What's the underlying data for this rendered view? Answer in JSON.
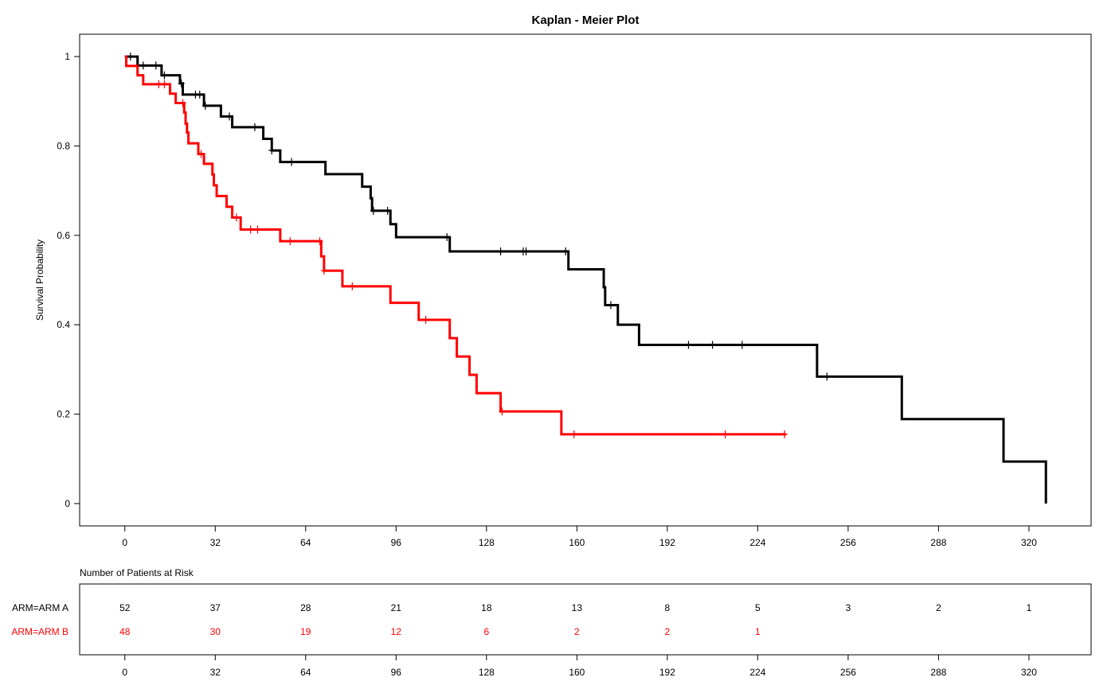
{
  "chart_data": {
    "type": "line",
    "title": "Kaplan - Meier Plot",
    "xlabel": "",
    "ylabel": "Survival Probability",
    "xlim": [
      -16,
      342
    ],
    "ylim": [
      -0.05,
      1.05
    ],
    "x_ticks": [
      "0",
      "32",
      "64",
      "96",
      "128",
      "160",
      "192",
      "224",
      "256",
      "288",
      "320"
    ],
    "y_ticks": [
      "0",
      "0.2",
      "0.4",
      "0.6",
      "0.8",
      "1"
    ],
    "colors": {
      "ARM A": "#000000",
      "ARM B": "#ff0000"
    },
    "series": [
      {
        "name": "ARM=ARM A",
        "color": "#000000",
        "steps": [
          [
            0,
            1.0
          ],
          [
            4.5,
            0.98
          ],
          [
            13,
            0.958
          ],
          [
            19.5,
            0.94
          ],
          [
            20.5,
            0.915
          ],
          [
            28,
            0.89
          ],
          [
            34,
            0.866
          ],
          [
            38,
            0.842
          ],
          [
            49,
            0.816
          ],
          [
            52,
            0.79
          ],
          [
            55,
            0.764
          ],
          [
            71,
            0.737
          ],
          [
            84,
            0.709
          ],
          [
            87,
            0.683
          ],
          [
            87.5,
            0.655
          ],
          [
            94,
            0.625
          ],
          [
            96,
            0.596
          ],
          [
            115,
            0.564
          ],
          [
            157,
            0.524
          ],
          [
            169.5,
            0.484
          ],
          [
            170,
            0.444
          ],
          [
            174.5,
            0.4
          ],
          [
            182,
            0.355
          ],
          [
            245,
            0.284
          ],
          [
            275,
            0.189
          ],
          [
            311,
            0.094
          ],
          [
            326,
            0.0
          ]
        ],
        "censor_x": [
          2,
          6.5,
          11,
          14,
          20,
          25,
          26.5,
          28.5,
          37,
          46,
          52,
          59,
          88,
          93,
          114,
          133,
          141,
          142,
          156,
          172,
          199.5,
          208,
          218.5,
          248.5
        ]
      },
      {
        "name": "ARM=ARM B",
        "color": "#ff0000",
        "steps": [
          [
            0,
            1.0
          ],
          [
            0.5,
            0.979
          ],
          [
            4.5,
            0.958
          ],
          [
            6.5,
            0.938
          ],
          [
            16,
            0.917
          ],
          [
            18,
            0.896
          ],
          [
            21,
            0.875
          ],
          [
            21.5,
            0.85
          ],
          [
            22,
            0.83
          ],
          [
            22.5,
            0.806
          ],
          [
            26,
            0.782
          ],
          [
            28,
            0.76
          ],
          [
            31,
            0.736
          ],
          [
            31.5,
            0.712
          ],
          [
            32.5,
            0.688
          ],
          [
            36,
            0.664
          ],
          [
            38,
            0.64
          ],
          [
            41,
            0.613
          ],
          [
            55,
            0.587
          ],
          [
            69.5,
            0.553
          ],
          [
            70.5,
            0.521
          ],
          [
            77,
            0.486
          ],
          [
            94,
            0.449
          ],
          [
            104,
            0.411
          ],
          [
            115,
            0.37
          ],
          [
            117.5,
            0.329
          ],
          [
            122,
            0.288
          ],
          [
            124.5,
            0.247
          ],
          [
            133,
            0.206
          ],
          [
            154.5,
            0.155
          ],
          [
            234,
            0.155
          ]
        ],
        "censor_x": [
          12,
          14,
          20.5,
          27,
          39.5,
          44.5,
          47,
          58.5,
          69,
          70.5,
          80.5,
          106.5,
          133.5,
          159,
          212.5,
          233.5
        ]
      }
    ]
  },
  "risk_table": {
    "title": "Number of Patients at Risk",
    "time_points": [
      0,
      32,
      64,
      96,
      128,
      160,
      192,
      224,
      256,
      288,
      320
    ],
    "x_ticks": [
      "0",
      "32",
      "64",
      "96",
      "128",
      "160",
      "192",
      "224",
      "256",
      "288",
      "320"
    ],
    "rows": [
      {
        "label": "ARM=ARM A",
        "color": "#000000",
        "counts": [
          "52",
          "37",
          "28",
          "21",
          "18",
          "13",
          "8",
          "5",
          "3",
          "2",
          "1"
        ]
      },
      {
        "label": "ARM=ARM B",
        "color": "#ff0000",
        "counts": [
          "48",
          "30",
          "19",
          "12",
          "6",
          "2",
          "2",
          "1"
        ]
      }
    ]
  }
}
